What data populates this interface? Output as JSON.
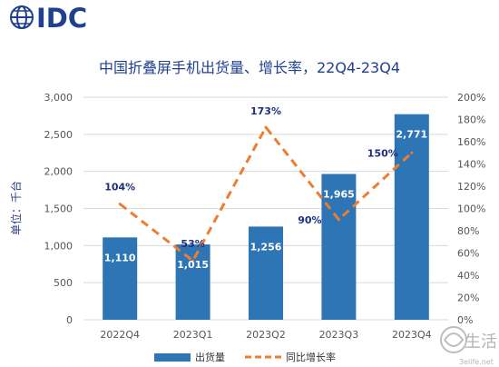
{
  "brand": {
    "logo_text": "IDC"
  },
  "watermark": {
    "text": "生活",
    "site": "3elife.net",
    "icon": "swirl-logo-icon"
  },
  "colors": {
    "bar": "#2e75b6",
    "line": "#ed7d31",
    "title": "#1f3f8f",
    "grid": "#d9d9d9",
    "logo": "#1f3f8f"
  },
  "chart_data": {
    "type": "bar",
    "title": "中国折叠屏手机出货量、增长率，22Q4-23Q4",
    "ylabel": "单位：千台",
    "categories": [
      "2022Q4",
      "2023Q1",
      "2023Q2",
      "2023Q3",
      "2023Q4"
    ],
    "series": [
      {
        "name": "出货量",
        "type": "bar",
        "values": [
          1110,
          1015,
          1256,
          1965,
          2771
        ],
        "labels": [
          "1,110",
          "1,015",
          "1,256",
          "1,965",
          "2,771"
        ]
      },
      {
        "name": "同比增长率",
        "type": "line",
        "style": "dashed",
        "values": [
          104,
          53,
          173,
          90,
          150
        ],
        "labels": [
          "104%",
          "53%",
          "173%",
          "90%",
          "150%"
        ]
      }
    ],
    "ylim": [
      0,
      3000
    ],
    "yticks": [
      "0",
      "500",
      "1,000",
      "1,500",
      "2,000",
      "2,500",
      "3,000"
    ],
    "y2lim": [
      0,
      200
    ],
    "y2ticks": [
      "0%",
      "20%",
      "40%",
      "60%",
      "80%",
      "100%",
      "120%",
      "140%",
      "160%",
      "180%",
      "200%"
    ],
    "grid": true,
    "legend_position": "bottom"
  }
}
